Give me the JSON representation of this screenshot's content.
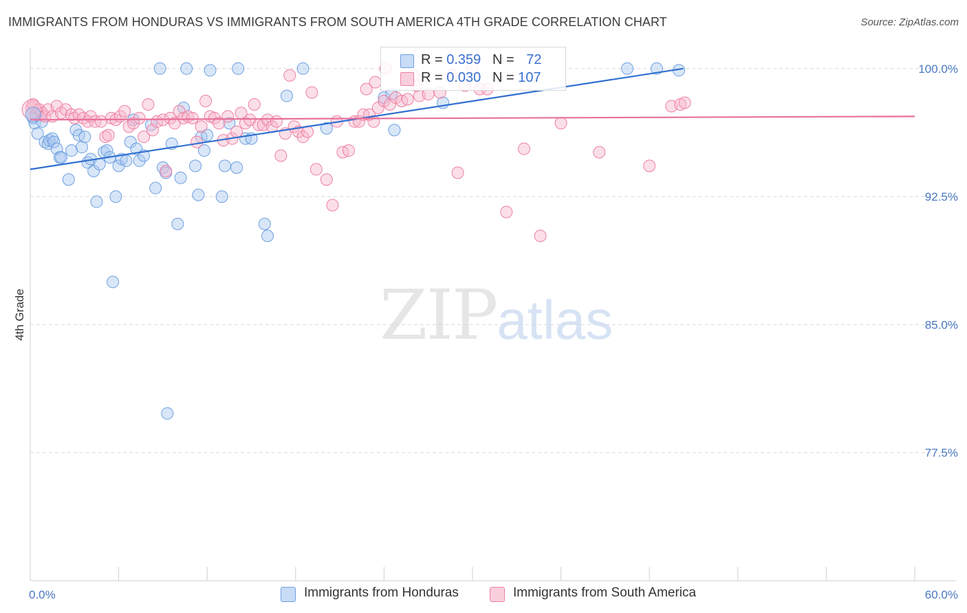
{
  "title": "IMMIGRANTS FROM HONDURAS VS IMMIGRANTS FROM SOUTH AMERICA 4TH GRADE CORRELATION CHART",
  "source": "Source: ZipAtlas.com",
  "watermark": {
    "zip": "ZIP",
    "atlas": "atlas"
  },
  "legend_box": {
    "rows": [
      {
        "r_label": "R = ",
        "r_value": "0.359",
        "n_label": "N = ",
        "n_value": "72",
        "color": "#a9c8f0"
      },
      {
        "r_label": "R = ",
        "r_value": "0.030",
        "n_label": "N = ",
        "n_value": "107",
        "color": "#f6b8cb"
      }
    ]
  },
  "bottom_legend": [
    {
      "label": "Immigrants from Honduras",
      "color": "#a9c8f0"
    },
    {
      "label": "Immigrants from South America",
      "color": "#f6b8cb"
    }
  ],
  "chart_data": {
    "type": "scatter",
    "title": "IMMIGRANTS FROM HONDURAS VS IMMIGRANTS FROM SOUTH AMERICA 4TH GRADE CORRELATION CHART",
    "xlabel": "",
    "ylabel": "4th Grade",
    "xlim": [
      0,
      60
    ],
    "ylim": [
      70.0,
      101.2
    ],
    "x_tick_labels": [
      "0.0%",
      "60.0%"
    ],
    "y_ticks": [
      77.5,
      85.0,
      92.5,
      100.0
    ],
    "y_tick_labels": [
      "77.5%",
      "85.0%",
      "92.5%",
      "100.0%"
    ],
    "grid": true,
    "series": [
      {
        "name": "Immigrants from Honduras",
        "color": "#6d9fe0",
        "trend": {
          "x": [
            0,
            44.3
          ],
          "y": [
            94.1,
            100.0
          ]
        },
        "points": [
          [
            0.2,
            97.1
          ],
          [
            0.3,
            96.8
          ],
          [
            0.5,
            96.2
          ],
          [
            0.8,
            96.9
          ],
          [
            1.0,
            95.7
          ],
          [
            1.2,
            95.6
          ],
          [
            1.3,
            95.8
          ],
          [
            1.5,
            95.9
          ],
          [
            1.6,
            95.7
          ],
          [
            1.8,
            95.3
          ],
          [
            2.0,
            94.8
          ],
          [
            2.1,
            94.8
          ],
          [
            2.6,
            93.5
          ],
          [
            2.8,
            95.2
          ],
          [
            3.1,
            96.4
          ],
          [
            3.3,
            96.1
          ],
          [
            3.5,
            95.4
          ],
          [
            3.7,
            96.0
          ],
          [
            3.9,
            94.5
          ],
          [
            4.1,
            94.7
          ],
          [
            4.3,
            94.0
          ],
          [
            4.5,
            92.2
          ],
          [
            4.7,
            94.4
          ],
          [
            5.0,
            95.1
          ],
          [
            5.2,
            95.2
          ],
          [
            5.4,
            94.8
          ],
          [
            5.6,
            87.5
          ],
          [
            5.8,
            92.5
          ],
          [
            6.0,
            94.3
          ],
          [
            6.2,
            94.7
          ],
          [
            6.5,
            94.6
          ],
          [
            6.8,
            95.7
          ],
          [
            7.0,
            97.0
          ],
          [
            7.2,
            95.3
          ],
          [
            7.4,
            94.6
          ],
          [
            7.7,
            94.9
          ],
          [
            8.2,
            96.7
          ],
          [
            8.5,
            93.0
          ],
          [
            8.8,
            100.0
          ],
          [
            9.0,
            94.2
          ],
          [
            9.2,
            93.9
          ],
          [
            9.3,
            79.8
          ],
          [
            9.6,
            95.6
          ],
          [
            10.0,
            90.9
          ],
          [
            10.2,
            93.6
          ],
          [
            10.4,
            97.7
          ],
          [
            10.6,
            100.0
          ],
          [
            11.2,
            94.3
          ],
          [
            11.4,
            92.6
          ],
          [
            11.6,
            96.0
          ],
          [
            11.8,
            95.2
          ],
          [
            12.0,
            96.1
          ],
          [
            12.2,
            99.9
          ],
          [
            13.0,
            92.5
          ],
          [
            13.2,
            94.3
          ],
          [
            13.5,
            96.8
          ],
          [
            14.0,
            94.2
          ],
          [
            14.1,
            100.0
          ],
          [
            14.6,
            95.9
          ],
          [
            15.0,
            95.9
          ],
          [
            15.9,
            90.9
          ],
          [
            16.1,
            90.2
          ],
          [
            17.4,
            98.4
          ],
          [
            18.5,
            100.0
          ],
          [
            20.1,
            96.5
          ],
          [
            24.0,
            98.3
          ],
          [
            24.5,
            98.5
          ],
          [
            24.7,
            96.4
          ],
          [
            28.0,
            98.0
          ],
          [
            40.5,
            100.0
          ],
          [
            42.5,
            100.0
          ],
          [
            44.0,
            99.9
          ]
        ]
      },
      {
        "name": "Immigrants from South America",
        "color": "#ee7fa4",
        "trend": {
          "x": [
            0,
            60
          ],
          "y": [
            97.0,
            97.2
          ]
        },
        "points": [
          [
            0.1,
            97.7
          ],
          [
            0.2,
            97.9
          ],
          [
            0.4,
            97.3
          ],
          [
            0.6,
            97.6
          ],
          [
            0.8,
            97.4
          ],
          [
            1.0,
            97.2
          ],
          [
            1.2,
            97.6
          ],
          [
            1.5,
            97.2
          ],
          [
            1.8,
            97.8
          ],
          [
            2.1,
            97.4
          ],
          [
            2.4,
            97.6
          ],
          [
            2.8,
            97.3
          ],
          [
            3.0,
            97.1
          ],
          [
            3.3,
            97.3
          ],
          [
            3.6,
            97.1
          ],
          [
            3.9,
            96.9
          ],
          [
            4.1,
            97.2
          ],
          [
            4.4,
            96.9
          ],
          [
            4.8,
            96.9
          ],
          [
            5.1,
            96.0
          ],
          [
            5.3,
            96.1
          ],
          [
            5.5,
            97.1
          ],
          [
            5.8,
            97.0
          ],
          [
            6.1,
            97.2
          ],
          [
            6.4,
            97.5
          ],
          [
            6.7,
            96.6
          ],
          [
            7.0,
            96.8
          ],
          [
            7.4,
            97.1
          ],
          [
            7.7,
            96.0
          ],
          [
            8.0,
            97.9
          ],
          [
            8.3,
            96.4
          ],
          [
            8.6,
            96.9
          ],
          [
            9.0,
            97.0
          ],
          [
            9.2,
            94.0
          ],
          [
            9.5,
            97.1
          ],
          [
            9.8,
            96.8
          ],
          [
            10.1,
            97.5
          ],
          [
            10.4,
            97.1
          ],
          [
            10.7,
            97.2
          ],
          [
            11.0,
            97.1
          ],
          [
            11.3,
            95.7
          ],
          [
            11.6,
            96.6
          ],
          [
            11.9,
            98.1
          ],
          [
            12.2,
            97.2
          ],
          [
            12.5,
            97.1
          ],
          [
            12.8,
            96.8
          ],
          [
            13.1,
            95.8
          ],
          [
            13.4,
            97.2
          ],
          [
            13.7,
            95.9
          ],
          [
            14.0,
            96.3
          ],
          [
            14.3,
            97.4
          ],
          [
            14.6,
            96.8
          ],
          [
            14.9,
            97.0
          ],
          [
            15.2,
            97.9
          ],
          [
            15.5,
            96.7
          ],
          [
            15.8,
            96.7
          ],
          [
            16.1,
            97.0
          ],
          [
            16.4,
            96.6
          ],
          [
            16.7,
            96.9
          ],
          [
            17.0,
            94.9
          ],
          [
            17.3,
            96.2
          ],
          [
            17.6,
            99.6
          ],
          [
            17.9,
            96.6
          ],
          [
            18.2,
            96.3
          ],
          [
            18.5,
            96.0
          ],
          [
            18.8,
            96.3
          ],
          [
            19.1,
            98.6
          ],
          [
            19.4,
            94.1
          ],
          [
            20.1,
            93.5
          ],
          [
            20.5,
            92.0
          ],
          [
            20.8,
            96.9
          ],
          [
            21.2,
            95.1
          ],
          [
            21.6,
            95.2
          ],
          [
            22.0,
            96.9
          ],
          [
            22.3,
            96.9
          ],
          [
            22.6,
            97.3
          ],
          [
            23.0,
            97.3
          ],
          [
            23.3,
            96.9
          ],
          [
            23.6,
            97.7
          ],
          [
            24.0,
            98.1
          ],
          [
            24.4,
            97.9
          ],
          [
            24.8,
            98.3
          ],
          [
            25.2,
            98.1
          ],
          [
            25.6,
            98.2
          ],
          [
            26.0,
            99.6
          ],
          [
            26.4,
            98.4
          ],
          [
            27.0,
            98.5
          ],
          [
            27.8,
            98.6
          ],
          [
            28.6,
            99.6
          ],
          [
            29.0,
            93.9
          ],
          [
            29.5,
            99.0
          ],
          [
            30.0,
            100.0
          ],
          [
            30.5,
            98.8
          ],
          [
            31.0,
            98.8
          ],
          [
            32.3,
            91.6
          ],
          [
            33.5,
            95.3
          ],
          [
            34.6,
            90.2
          ],
          [
            36.0,
            96.8
          ],
          [
            38.6,
            95.1
          ],
          [
            42.0,
            94.3
          ],
          [
            43.5,
            97.8
          ],
          [
            44.1,
            97.9
          ],
          [
            44.4,
            98.0
          ],
          [
            26.2,
            99.0
          ],
          [
            24.1,
            100.0
          ],
          [
            23.4,
            99.2
          ],
          [
            22.8,
            98.8
          ]
        ]
      }
    ]
  }
}
